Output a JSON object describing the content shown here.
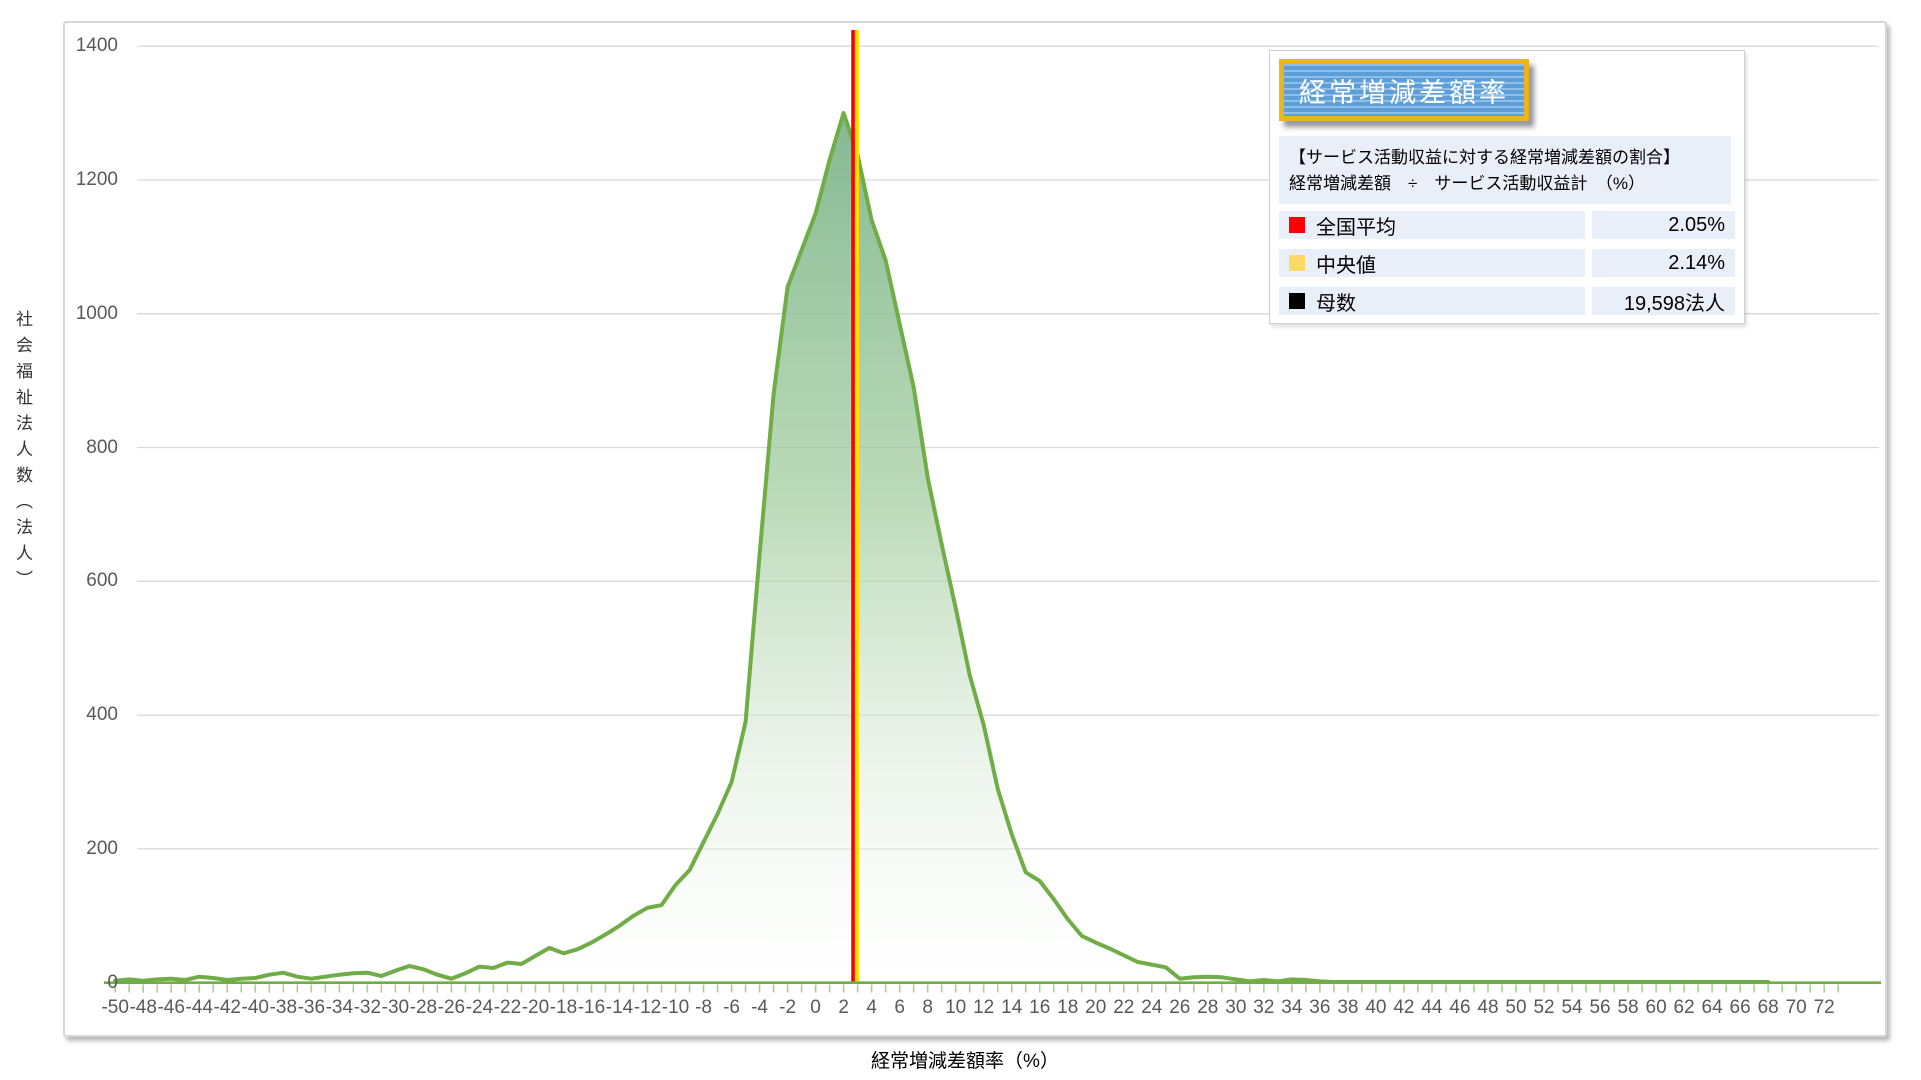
{
  "chart_data": {
    "type": "area",
    "title": "経常増減差額率",
    "xlabel": "経常増減差額率（%）",
    "ylabel": "社会福祉法人数（法人）",
    "x_start": -50,
    "x_step": 1,
    "xlim": [
      -51,
      76
    ],
    "ylim": [
      0,
      1400
    ],
    "grid": "horizontal",
    "y_ticks": [
      0,
      200,
      400,
      600,
      800,
      1000,
      1200,
      1400
    ],
    "x_tick_labels": [
      -50,
      -48,
      -46,
      -44,
      -42,
      -40,
      -38,
      -36,
      -34,
      -32,
      -30,
      -28,
      -26,
      -24,
      -22,
      -20,
      -18,
      -16,
      -14,
      -12,
      -10,
      -8,
      -6,
      -4,
      -2,
      0,
      2,
      4,
      6,
      8,
      10,
      12,
      14,
      16,
      18,
      20,
      22,
      24,
      26,
      28,
      30,
      32,
      34,
      36,
      38,
      40,
      42,
      44,
      46,
      48,
      50,
      52,
      54,
      56,
      58,
      60,
      62,
      64,
      66,
      68,
      70,
      72
    ],
    "values": [
      3,
      5,
      3,
      5,
      6,
      4,
      9,
      7,
      4,
      6,
      7,
      12,
      15,
      9,
      6,
      9,
      12,
      14,
      15,
      10,
      18,
      25,
      20,
      12,
      6,
      14,
      24,
      22,
      30,
      28,
      40,
      52,
      44,
      50,
      60,
      72,
      85,
      100,
      112,
      116,
      146,
      168,
      210,
      252,
      300,
      390,
      640,
      880,
      1040,
      1095,
      1150,
      1230,
      1300,
      1237,
      1140,
      1080,
      985,
      890,
      755,
      655,
      560,
      460,
      385,
      290,
      222,
      165,
      152,
      125,
      95,
      70,
      60,
      51,
      41,
      31,
      27,
      23,
      6,
      8,
      9,
      8,
      5,
      2,
      4,
      2,
      5,
      4,
      2,
      1,
      1,
      1,
      1,
      1,
      1,
      1,
      1,
      1,
      1,
      1,
      1,
      1,
      1,
      1,
      1,
      1,
      1,
      1,
      1,
      1,
      1,
      1,
      1,
      1,
      1,
      1,
      1,
      1,
      1,
      1,
      1
    ],
    "mean_line": {
      "label": "全国平均",
      "value": "2.05%"
    },
    "median_line": {
      "label": "中央値",
      "value": "2.14%"
    },
    "population": {
      "label": "母数",
      "value": "19,598法人"
    }
  },
  "legend": {
    "title": "経常増減差額率",
    "formula_line1": "【サービス活動収益に対する経常増減差額の割合】",
    "formula_line2": "経常増減差額　÷　サービス活動収益計　（%）",
    "rows": [
      {
        "label": "全国平均",
        "value": "2.05%",
        "swatch": "#ff0000"
      },
      {
        "label": "中央値",
        "value": "2.14%",
        "swatch": "#ffd966"
      },
      {
        "label": "母数",
        "value": "19,598法人",
        "swatch": "#000000"
      }
    ]
  },
  "colors": {
    "curve_line": "#70ad47",
    "area_top": "#7eb58c",
    "area_mid": "#a6cea2",
    "area_bottom": "#ffffff",
    "axis_line": "#70ad47",
    "tick_mark": "#a9d18e",
    "gridline": "#d9d9d9",
    "axis_text": "#595959",
    "mean_line": "#ff0000",
    "median_line": "#ffe000",
    "legend_title_bg": "#5c9ed7",
    "legend_title_border": "#edb41f",
    "legend_cell_bg": "#e9eff8"
  }
}
